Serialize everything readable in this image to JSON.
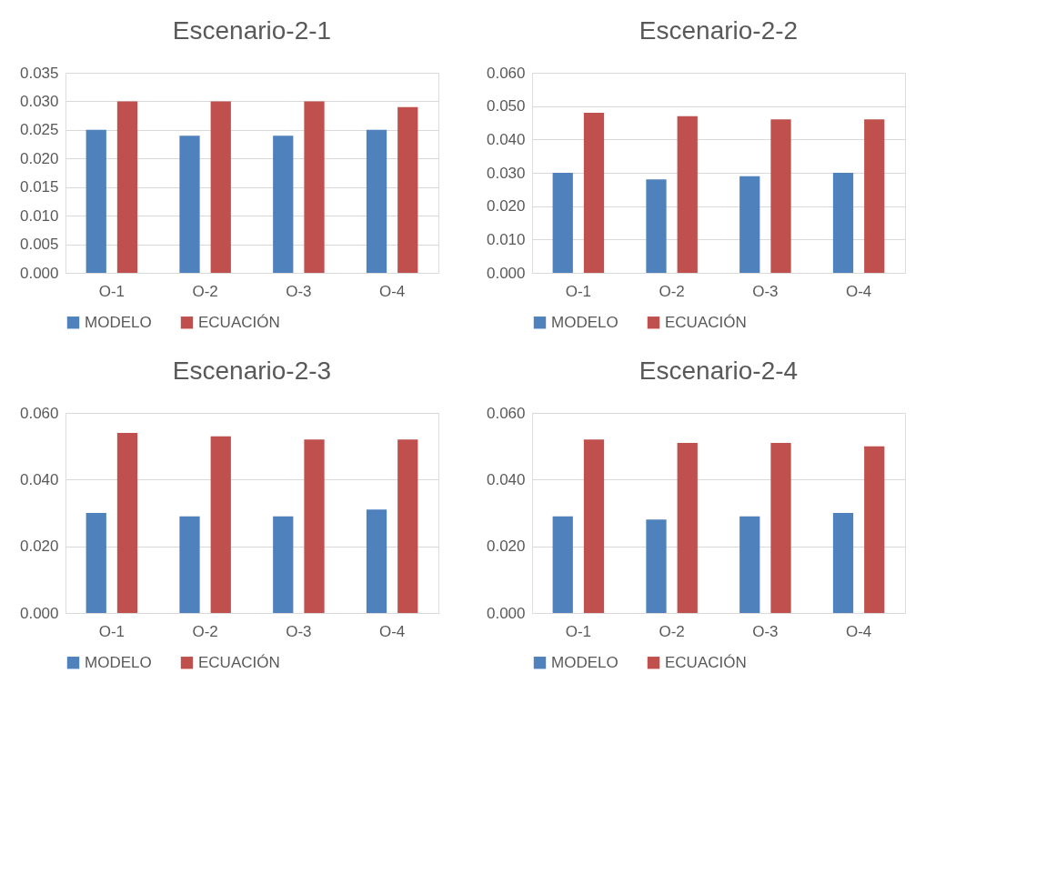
{
  "chart_data": [
    {
      "type": "bar",
      "title": "Escenario-2-1",
      "categories": [
        "O-1",
        "O-2",
        "O-3",
        "O-4"
      ],
      "series": [
        {
          "name": "MODELO",
          "color": "#4f81bd",
          "values": [
            0.025,
            0.024,
            0.024,
            0.025
          ]
        },
        {
          "name": "ECUACIÓN",
          "color": "#c0504d",
          "values": [
            0.03,
            0.03,
            0.03,
            0.029
          ]
        }
      ],
      "ylim": [
        0,
        0.035
      ],
      "yticks": [
        {
          "value": 0,
          "label": "0.000"
        },
        {
          "value": 0.005,
          "label": "0.005"
        },
        {
          "value": 0.01,
          "label": "0.010"
        },
        {
          "value": 0.015,
          "label": "0.015"
        },
        {
          "value": 0.02,
          "label": "0.020"
        },
        {
          "value": 0.025,
          "label": "0.025"
        },
        {
          "value": 0.03,
          "label": "0.030"
        },
        {
          "value": 0.035,
          "label": "0.035"
        }
      ],
      "grid": "y",
      "legend": "bottom"
    },
    {
      "type": "bar",
      "title": "Escenario-2-2",
      "categories": [
        "O-1",
        "O-2",
        "O-3",
        "O-4"
      ],
      "series": [
        {
          "name": "MODELO",
          "color": "#4f81bd",
          "values": [
            0.03,
            0.028,
            0.029,
            0.03
          ]
        },
        {
          "name": "ECUACIÓN",
          "color": "#c0504d",
          "values": [
            0.048,
            0.047,
            0.046,
            0.046
          ]
        }
      ],
      "ylim": [
        0,
        0.06
      ],
      "yticks": [
        {
          "value": 0,
          "label": "0.000"
        },
        {
          "value": 0.01,
          "label": "0.010"
        },
        {
          "value": 0.02,
          "label": "0.020"
        },
        {
          "value": 0.03,
          "label": "0.030"
        },
        {
          "value": 0.04,
          "label": "0.040"
        },
        {
          "value": 0.05,
          "label": "0.050"
        },
        {
          "value": 0.06,
          "label": "0.060"
        }
      ],
      "grid": "y",
      "legend": "bottom"
    },
    {
      "type": "bar",
      "title": "Escenario-2-3",
      "categories": [
        "O-1",
        "O-2",
        "O-3",
        "O-4"
      ],
      "series": [
        {
          "name": "MODELO",
          "color": "#4f81bd",
          "values": [
            0.03,
            0.029,
            0.029,
            0.031
          ]
        },
        {
          "name": "ECUACIÓN",
          "color": "#c0504d",
          "values": [
            0.054,
            0.053,
            0.052,
            0.052
          ]
        }
      ],
      "ylim": [
        0,
        0.06
      ],
      "yticks": [
        {
          "value": 0,
          "label": "0.000"
        },
        {
          "value": 0.02,
          "label": "0.020"
        },
        {
          "value": 0.04,
          "label": "0.040"
        },
        {
          "value": 0.06,
          "label": "0.060"
        }
      ],
      "grid": "y",
      "legend": "bottom"
    },
    {
      "type": "bar",
      "title": "Escenario-2-4",
      "categories": [
        "O-1",
        "O-2",
        "O-3",
        "O-4"
      ],
      "series": [
        {
          "name": "MODELO",
          "color": "#4f81bd",
          "values": [
            0.029,
            0.028,
            0.029,
            0.03
          ]
        },
        {
          "name": "ECUACIÓN",
          "color": "#c0504d",
          "values": [
            0.052,
            0.051,
            0.051,
            0.05
          ]
        }
      ],
      "ylim": [
        0,
        0.06
      ],
      "yticks": [
        {
          "value": 0,
          "label": "0.000"
        },
        {
          "value": 0.02,
          "label": "0.020"
        },
        {
          "value": 0.04,
          "label": "0.040"
        },
        {
          "value": 0.06,
          "label": "0.060"
        }
      ],
      "grid": "y",
      "legend": "bottom"
    }
  ]
}
